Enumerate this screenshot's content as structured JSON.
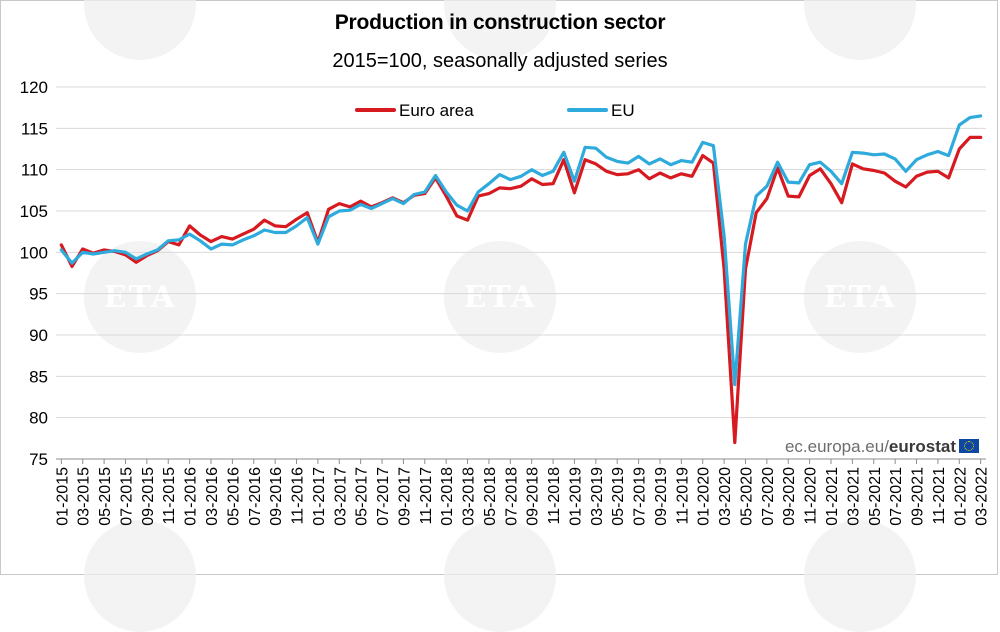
{
  "title": "Production in construction sector",
  "subtitle": "2015=100, seasonally adjusted series",
  "source": {
    "site": "ec.europa.eu/",
    "brand": "eurostat"
  },
  "watermark": "ETA",
  "colors": {
    "euro_area": "#d71920",
    "eu": "#2eaadc",
    "grid": "#d9d9d9"
  },
  "chart_data": {
    "type": "line",
    "title": "Production in construction sector",
    "subtitle": "2015=100, seasonally adjusted series",
    "ylim": [
      75,
      120
    ],
    "yticks": [
      75,
      80,
      85,
      90,
      95,
      100,
      105,
      110,
      115,
      120
    ],
    "grid": true,
    "legend_position": "top-center",
    "x": [
      "01-2015",
      "02-2015",
      "03-2015",
      "04-2015",
      "05-2015",
      "06-2015",
      "07-2015",
      "08-2015",
      "09-2015",
      "10-2015",
      "11-2015",
      "12-2015",
      "01-2016",
      "02-2016",
      "03-2016",
      "04-2016",
      "05-2016",
      "06-2016",
      "07-2016",
      "08-2016",
      "09-2016",
      "10-2016",
      "11-2016",
      "12-2016",
      "01-2017",
      "02-2017",
      "03-2017",
      "04-2017",
      "05-2017",
      "06-2017",
      "07-2017",
      "08-2017",
      "09-2017",
      "10-2017",
      "11-2017",
      "12-2017",
      "01-2018",
      "02-2018",
      "03-2018",
      "04-2018",
      "05-2018",
      "06-2018",
      "07-2018",
      "08-2018",
      "09-2018",
      "10-2018",
      "11-2018",
      "12-2018",
      "01-2019",
      "02-2019",
      "03-2019",
      "04-2019",
      "05-2019",
      "06-2019",
      "07-2019",
      "08-2019",
      "09-2019",
      "10-2019",
      "11-2019",
      "12-2019",
      "01-2020",
      "02-2020",
      "03-2020",
      "04-2020",
      "05-2020",
      "06-2020",
      "07-2020",
      "08-2020",
      "09-2020",
      "10-2020",
      "11-2020",
      "12-2020",
      "01-2021",
      "02-2021",
      "03-2021",
      "04-2021",
      "05-2021",
      "06-2021",
      "07-2021",
      "08-2021",
      "09-2021",
      "10-2021",
      "11-2021",
      "12-2021",
      "01-2022",
      "02-2022",
      "03-2022"
    ],
    "xticklabels": [
      "01-2015",
      "03-2015",
      "05-2015",
      "07-2015",
      "09-2015",
      "11-2015",
      "01-2016",
      "03-2016",
      "05-2016",
      "07-2016",
      "09-2016",
      "11-2016",
      "01-2017",
      "03-2017",
      "05-2017",
      "07-2017",
      "09-2017",
      "11-2017",
      "01-2018",
      "03-2018",
      "05-2018",
      "07-2018",
      "09-2018",
      "11-2018",
      "01-2019",
      "03-2019",
      "05-2019",
      "07-2019",
      "09-2019",
      "11-2019",
      "01-2020",
      "03-2020",
      "05-2020",
      "07-2020",
      "09-2020",
      "11-2020",
      "01-2021",
      "03-2021",
      "05-2021",
      "07-2021",
      "09-2021",
      "11-2021",
      "01-2022",
      "03-2022"
    ],
    "series": [
      {
        "name": "Euro area",
        "color": "#d71920",
        "values": [
          100.9,
          98.3,
          100.4,
          99.9,
          100.3,
          100.1,
          99.7,
          98.8,
          99.6,
          100.2,
          101.3,
          100.9,
          103.2,
          102.1,
          101.3,
          101.9,
          101.6,
          102.2,
          102.8,
          103.9,
          103.2,
          103.1,
          104.0,
          104.8,
          101.2,
          105.2,
          105.9,
          105.5,
          106.2,
          105.5,
          106.0,
          106.6,
          106.0,
          106.9,
          107.1,
          109.0,
          106.8,
          104.4,
          103.9,
          106.8,
          107.1,
          107.8,
          107.7,
          108.0,
          108.9,
          108.2,
          108.3,
          111.2,
          107.2,
          111.2,
          110.7,
          109.8,
          109.4,
          109.5,
          110.0,
          108.9,
          109.6,
          109.0,
          109.5,
          109.2,
          111.7,
          110.8,
          98.0,
          77.0,
          98.0,
          104.8,
          106.5,
          110.2,
          106.8,
          106.7,
          109.3,
          110.1,
          108.3,
          106.0,
          110.7,
          110.1,
          109.9,
          109.6,
          108.6,
          107.9,
          109.2,
          109.7,
          109.8,
          109.0,
          112.5,
          113.9,
          113.9
        ]
      },
      {
        "name": "EU",
        "color": "#2eaadc",
        "values": [
          100.3,
          98.7,
          100.0,
          99.8,
          100.0,
          100.2,
          100.0,
          99.2,
          99.8,
          100.3,
          101.4,
          101.5,
          102.2,
          101.4,
          100.4,
          101.0,
          100.9,
          101.5,
          102.0,
          102.7,
          102.4,
          102.4,
          103.2,
          104.2,
          101.0,
          104.3,
          105.0,
          105.1,
          105.8,
          105.3,
          105.9,
          106.5,
          105.9,
          107.0,
          107.3,
          109.3,
          107.3,
          105.7,
          105.0,
          107.3,
          108.3,
          109.4,
          108.8,
          109.2,
          110.0,
          109.3,
          109.8,
          112.1,
          108.6,
          112.7,
          112.6,
          111.5,
          111.0,
          110.8,
          111.6,
          110.7,
          111.3,
          110.6,
          111.1,
          110.9,
          113.3,
          112.9,
          102.0,
          84.0,
          101.0,
          106.8,
          108.0,
          110.9,
          108.5,
          108.4,
          110.6,
          110.9,
          109.8,
          108.3,
          112.1,
          112.0,
          111.8,
          111.9,
          111.3,
          109.8,
          111.2,
          111.8,
          112.2,
          111.7,
          115.4,
          116.3,
          116.5
        ]
      }
    ]
  }
}
